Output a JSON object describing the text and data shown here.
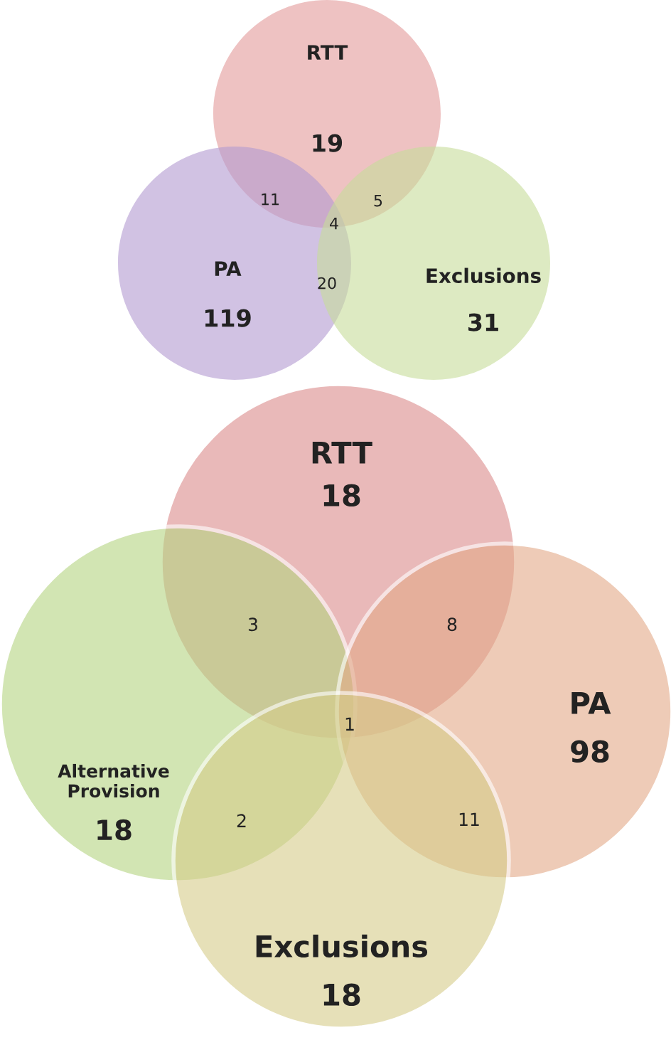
{
  "chart_data": [
    {
      "type": "other",
      "categories": [
        "RTT",
        "PA",
        "Exclusions"
      ],
      "values": [
        19,
        119,
        31
      ],
      "colors": [
        "#e39a9a",
        "#b39ad1",
        "#c6dc9a"
      ],
      "data_labels": true,
      "annotations": [
        "11",
        "5",
        "4",
        "20"
      ]
    },
    {
      "type": "other",
      "categories": [
        "RTT",
        "Alternative\nProvision",
        "PA",
        "Exclusions"
      ],
      "values": [
        18,
        18,
        98,
        18
      ],
      "colors": [
        "#dc8c8c",
        "#b5d482",
        "#e3aa88",
        "#d6cd8a"
      ],
      "data_labels": true,
      "annotations": [
        "3",
        "8",
        "1",
        "2",
        "11"
      ]
    }
  ]
}
